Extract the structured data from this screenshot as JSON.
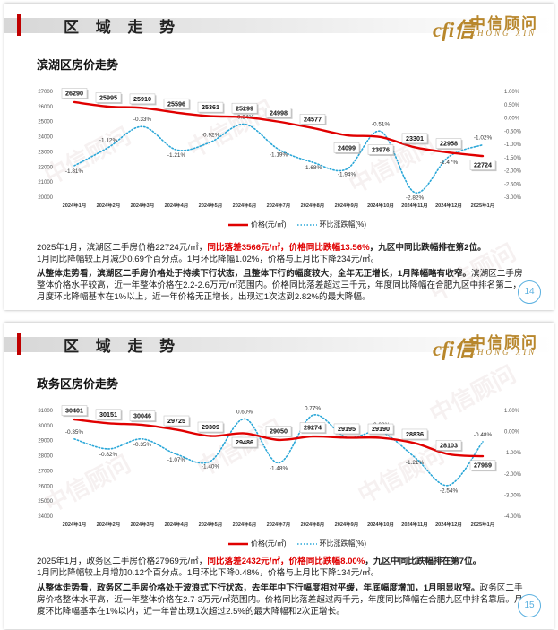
{
  "watermark": "中信顾问",
  "logo": {
    "mark": "cfi信",
    "cn": "中信顾问",
    "en": "ZHONG XIN"
  },
  "slides": [
    {
      "header_title": "区 域 走 势",
      "subtitle": "滨湖区房价走势",
      "page_number": "14",
      "paragraph1": {
        "a": "2025年1月，滨湖区二手房价格22724元/㎡，",
        "hl1": "同比落差3566元/㎡",
        "sep": "，",
        "hl2": "价格同比跌幅13.56%",
        "c": "，九区中同比跌幅排在第2位。",
        "line2": "1月同比降幅较上月减少0.69个百分点。1月环比降幅1.02%，价格与上月比下降234元/㎡。"
      },
      "paragraph2": {
        "bold": "从整体走势看，滨湖区二手房价格处于持续下行状态，且整体下行的幅度较大，全年无正增长，1月降幅略有收窄。",
        "rest": "滨湖区二手房整体价格水平较高，近一年整体价格在2.2-2.6万元/㎡范围内。价格同比落差超过三千元，年度同比降幅在合肥九区中排名第二，月度环比降幅基本在1%以上，近一年价格无正增长，出现过1次达到2.82%的最大降幅。"
      }
    },
    {
      "header_title": "区 域 走 势",
      "subtitle": "政务区房价走势",
      "page_number": "15",
      "paragraph1": {
        "a": "2025年1月，政务区二手房价格27969元/㎡，",
        "hl1": "同比落差2432元/㎡",
        "sep": "，",
        "hl2": "价格同比跌幅8.00%",
        "c": "，九区中同比跌幅排在第7位。",
        "line2": "1月同比降幅较上月增加0.12个百分点。1月环比下降0.48%，价格与上月比下降134元/㎡。"
      },
      "paragraph2": {
        "bold": "从整体走势看，政务区二手房价格处于波浪式下行状态，去年年中下行幅度相对平缓，年底幅度增加，1月明显收窄。",
        "rest": "政务区二手房价格整体水平高，近一年整体价格在2.7-3万元/㎡范围内。价格同比落差超过两千元，年度同比降幅在合肥九区中排名靠后。月度环比降幅基本在1%以内，近一年曾出现1次超过2.5%的最大降幅和2次正增长。"
      }
    }
  ],
  "chart_data": [
    {
      "type": "line",
      "title": "滨湖区房价走势",
      "categories": [
        "2024年1月",
        "2024年2月",
        "2024年3月",
        "2024年4月",
        "2024年5月",
        "2024年6月",
        "2024年7月",
        "2024年8月",
        "2024年9月",
        "2024年10月",
        "2024年11月",
        "2024年12月",
        "2025年1月"
      ],
      "series": [
        {
          "name": "价格(元/㎡)",
          "axis": "left",
          "style": "solid",
          "color": "#e00000",
          "values": [
            26290,
            25995,
            25910,
            25596,
            25361,
            25299,
            24998,
            24577,
            24099,
            23976,
            23301,
            22958,
            22724
          ],
          "labels": [
            "26290",
            "25995",
            "25910",
            "25596",
            "25361",
            "25299",
            "24998",
            "24577",
            "24099",
            "23976",
            "23301",
            "22958",
            "22724"
          ]
        },
        {
          "name": "环比涨跌幅(%)",
          "axis": "right",
          "style": "dotted",
          "color": "#2aa7d8",
          "values": [
            -1.81,
            -1.12,
            -0.33,
            -1.21,
            -0.92,
            -0.24,
            -1.19,
            -1.68,
            -1.94,
            -0.51,
            -2.82,
            -1.47,
            -1.02
          ],
          "labels": [
            "-1.81%",
            "-1.12%",
            "-0.33%",
            "-1.21%",
            "-0.92%",
            "-0.24%",
            "-1.19%",
            "-1.68%",
            "-1.94%",
            "-0.51%",
            "-2.82%",
            "-1.47%",
            "-1.02%"
          ]
        }
      ],
      "left_axis": {
        "ylim": [
          20000,
          27000
        ],
        "ticks": [
          "27000",
          "26000",
          "25000",
          "24000",
          "23000",
          "22000",
          "21000",
          "20000"
        ]
      },
      "right_axis": {
        "ylim": [
          -3.0,
          1.0
        ],
        "ticks": [
          "1.00%",
          "0.50%",
          "0.00%",
          "-0.50%",
          "-1.00%",
          "-1.50%",
          "-2.00%",
          "-2.50%",
          "-3.00%"
        ]
      },
      "legend": "bottom-center",
      "grid": false
    },
    {
      "type": "line",
      "title": "政务区房价走势",
      "categories": [
        "2024年1月",
        "2024年2月",
        "2024年3月",
        "2024年4月",
        "2024年5月",
        "2024年6月",
        "2024年7月",
        "2024年8月",
        "2024年9月",
        "2024年10月",
        "2024年11月",
        "2024年12月",
        "2025年1月"
      ],
      "series": [
        {
          "name": "价格(元/㎡)",
          "axis": "left",
          "style": "solid",
          "color": "#e00000",
          "values": [
            30401,
            30151,
            30046,
            29725,
            29309,
            29486,
            29050,
            29274,
            29195,
            29190,
            28836,
            28103,
            27969
          ],
          "labels": [
            "30401",
            "30151",
            "30046",
            "29725",
            "29309",
            "29486",
            "29050",
            "29274",
            "29195",
            "29190",
            "28836",
            "28103",
            "27969"
          ]
        },
        {
          "name": "环比涨跌幅(%)",
          "axis": "right",
          "style": "dotted",
          "color": "#2aa7d8",
          "values": [
            -0.35,
            -0.82,
            -0.35,
            -1.07,
            -1.4,
            0.6,
            -1.48,
            0.77,
            -0.27,
            -0.02,
            -1.21,
            -2.54,
            -0.48
          ],
          "labels": [
            "-0.35%",
            "-0.82%",
            "-0.35%",
            "-1.07%",
            "-1.40%",
            "0.60%",
            "-1.48%",
            "0.77%",
            "-0.27%",
            "-0.02%",
            "-1.21%",
            "-2.54%",
            "-0.48%"
          ]
        }
      ],
      "left_axis": {
        "ylim": [
          24000,
          31000
        ],
        "ticks": [
          "31000",
          "30000",
          "29000",
          "28000",
          "27000",
          "26000",
          "25000",
          "24000"
        ]
      },
      "right_axis": {
        "ylim": [
          -4.0,
          1.0
        ],
        "ticks": [
          "1.00%",
          "0.00%",
          "-1.00%",
          "-2.00%",
          "-3.00%",
          "-4.00%"
        ]
      },
      "legend": "bottom-center",
      "grid": false
    }
  ]
}
